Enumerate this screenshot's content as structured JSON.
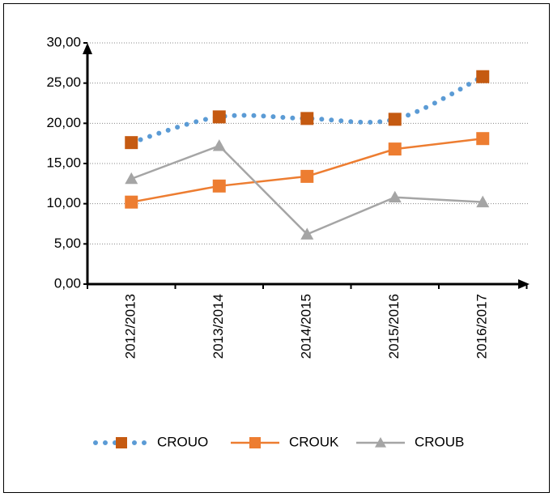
{
  "chart_data": {
    "type": "line",
    "categories": [
      "2012/2013",
      "2013/2014",
      "2014/2015",
      "2015/2016",
      "2016/2017"
    ],
    "series": [
      {
        "name": "CROUO",
        "color": "#5b9bd5",
        "marker_color": "#c55a11",
        "marker": "square",
        "line_style": "dotted",
        "smooth": true,
        "values": [
          17.6,
          20.8,
          20.6,
          20.5,
          25.8
        ]
      },
      {
        "name": "CROUK",
        "color": "#ed7d31",
        "marker_color": "#ed7d31",
        "marker": "square",
        "line_style": "solid",
        "smooth": false,
        "values": [
          10.2,
          12.2,
          13.4,
          16.8,
          18.1
        ]
      },
      {
        "name": "CROUB",
        "color": "#a5a5a5",
        "marker_color": "#a5a5a5",
        "marker": "triangle",
        "line_style": "solid",
        "smooth": false,
        "values": [
          13.1,
          17.2,
          6.2,
          10.8,
          10.2
        ]
      }
    ],
    "ylim": [
      0,
      30
    ],
    "yticks": [
      {
        "value": 0,
        "label": "0,00"
      },
      {
        "value": 5,
        "label": "5,00"
      },
      {
        "value": 10,
        "label": "10,00"
      },
      {
        "value": 15,
        "label": "15,00"
      },
      {
        "value": 20,
        "label": "20,00"
      },
      {
        "value": 25,
        "label": "25,00"
      },
      {
        "value": 30,
        "label": "30,00"
      }
    ],
    "grid": true,
    "legend": "bottom"
  }
}
